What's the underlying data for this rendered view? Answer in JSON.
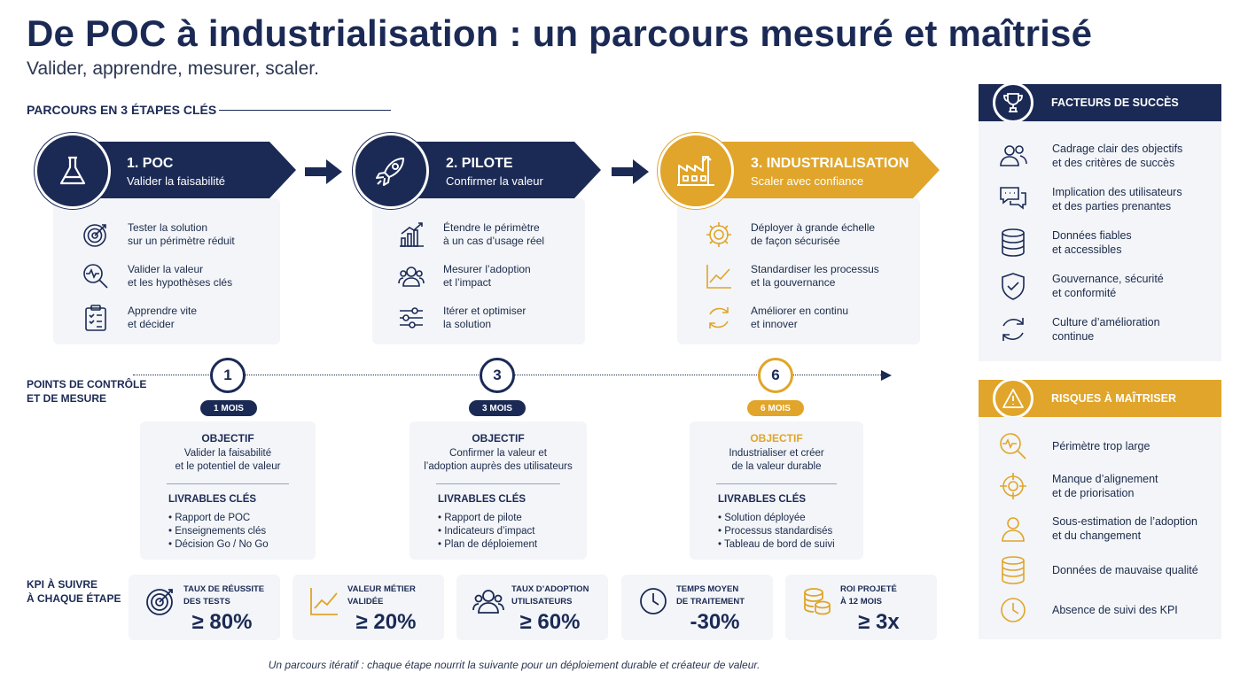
{
  "header": {
    "title": "De POC à industrialisation : un parcours mesuré et maîtrisé",
    "subtitle": "Valider, apprendre, mesurer, scaler.",
    "section": "PARCOURS EN 3 ÉTAPES CLÉS"
  },
  "stages": [
    {
      "name": "1. POC",
      "sub": "Valider la faisabilité",
      "icon": "flask-icon",
      "items": [
        {
          "icon": "target-icon",
          "l1": "Tester la solution",
          "l2": "sur un périmètre réduit"
        },
        {
          "icon": "magnifier-pulse-icon",
          "l1": "Valider la valeur",
          "l2": "et les hypothèses clés"
        },
        {
          "icon": "clipboard-icon",
          "l1": "Apprendre vite",
          "l2": "et décider"
        }
      ]
    },
    {
      "name": "2. PILOTE",
      "sub": "Confirmer la valeur",
      "icon": "rocket-icon",
      "items": [
        {
          "icon": "bar-chart-icon",
          "l1": "Étendre le périmètre",
          "l2": "à un cas d’usage réel"
        },
        {
          "icon": "users-icon",
          "l1": "Mesurer l’adoption",
          "l2": "et l’impact"
        },
        {
          "icon": "sliders-icon",
          "l1": "Itérer et optimiser",
          "l2": "la solution"
        }
      ]
    },
    {
      "name": "3. INDUSTRIALISATION",
      "sub": "Scaler avec confiance",
      "icon": "factory-icon",
      "items": [
        {
          "icon": "gear-icon",
          "l1": "Déployer à grande échelle",
          "l2": "de façon sécurisée"
        },
        {
          "icon": "line-chart-icon",
          "l1": "Standardiser les processus",
          "l2": "et la gouvernance"
        },
        {
          "icon": "cycle-icon",
          "l1": "Améliorer en continu",
          "l2": "et innover"
        }
      ]
    }
  ],
  "checkpoints": {
    "label_l1": "POINTS DE CONTRÔLE",
    "label_l2": "ET DE MESURE",
    "items": [
      {
        "num": "1",
        "pill": "1 MOIS",
        "obj_h": "OBJECTIF",
        "obj_l1": "Valider la faisabilité",
        "obj_l2": "et le potentiel de valeur",
        "deliv_h": "LIVRABLES CLÉS",
        "deliv": [
          "• Rapport de POC",
          "• Enseignements clés",
          "• Décision Go / No Go"
        ]
      },
      {
        "num": "3",
        "pill": "3 MOIS",
        "obj_h": "OBJECTIF",
        "obj_l1": "Confirmer la valeur et",
        "obj_l2": "l’adoption auprès des utilisateurs",
        "deliv_h": "LIVRABLES CLÉS",
        "deliv": [
          "• Rapport de pilote",
          "• Indicateurs d’impact",
          "• Plan de déploiement"
        ]
      },
      {
        "num": "6",
        "pill": "6 MOIS",
        "obj_h": "OBJECTIF",
        "obj_l1": "Industrialiser et créer",
        "obj_l2": "de la valeur durable",
        "deliv_h": "LIVRABLES CLÉS",
        "deliv": [
          "• Solution déployée",
          "• Processus standardisés",
          "• Tableau de bord de suivi"
        ]
      }
    ]
  },
  "kpis": {
    "label_l1": "KPI À SUIVRE",
    "label_l2": "À CHAQUE ÉTAPE",
    "items": [
      {
        "icon": "target-icon",
        "l1": "TAUX DE RÉUSSITE",
        "l2": "DES TESTS",
        "value": "≥ 80%"
      },
      {
        "icon": "line-chart-icon",
        "l1": "VALEUR MÉTIER",
        "l2": "VALIDÉE",
        "value": "≥ 20%"
      },
      {
        "icon": "users-icon",
        "l1": "TAUX D’ADOPTION",
        "l2": "UTILISATEURS",
        "value": "≥ 60%"
      },
      {
        "icon": "clock-icon",
        "l1": "TEMPS MOYEN",
        "l2": "DE TRAITEMENT",
        "value": "-30%"
      },
      {
        "icon": "coins-icon",
        "l1": "ROI PROJETÉ",
        "l2": "À 12 MOIS",
        "value": "≥ 3x"
      }
    ]
  },
  "success": {
    "title": "FACTEURS DE SUCCÈS",
    "icon": "trophy-icon",
    "items": [
      {
        "icon": "users-icon",
        "l1": "Cadrage clair des objectifs",
        "l2": "et des critères de succès"
      },
      {
        "icon": "chat-icon",
        "l1": "Implication des utilisateurs",
        "l2": "et des parties prenantes"
      },
      {
        "icon": "database-icon",
        "l1": "Données fiables",
        "l2": "et accessibles"
      },
      {
        "icon": "shield-icon",
        "l1": "Gouvernance, sécurité",
        "l2": "et conformité"
      },
      {
        "icon": "cycle-icon",
        "l1": "Culture d’amélioration",
        "l2": "continue"
      }
    ]
  },
  "risks": {
    "title": "RISQUES À MAÎTRISER",
    "icon": "warning-icon",
    "items": [
      {
        "icon": "magnifier-pulse-icon",
        "l1": "Périmètre trop large",
        "l2": ""
      },
      {
        "icon": "crosshair-icon",
        "l1": "Manque d’alignement",
        "l2": "et de priorisation"
      },
      {
        "icon": "user-icon",
        "l1": "Sous-estimation de l’adoption",
        "l2": "et du changement"
      },
      {
        "icon": "database-icon",
        "l1": "Données de mauvaise qualité",
        "l2": ""
      },
      {
        "icon": "clock-icon",
        "l1": "Absence de suivi des KPI",
        "l2": ""
      }
    ]
  },
  "footer": "Un parcours itératif : chaque étape nourrit la suivante pour un déploiement durable et créateur de valeur.",
  "colors": {
    "navy": "#1b2a55",
    "gold": "#e0a52a",
    "card": "#f3f5f8"
  }
}
